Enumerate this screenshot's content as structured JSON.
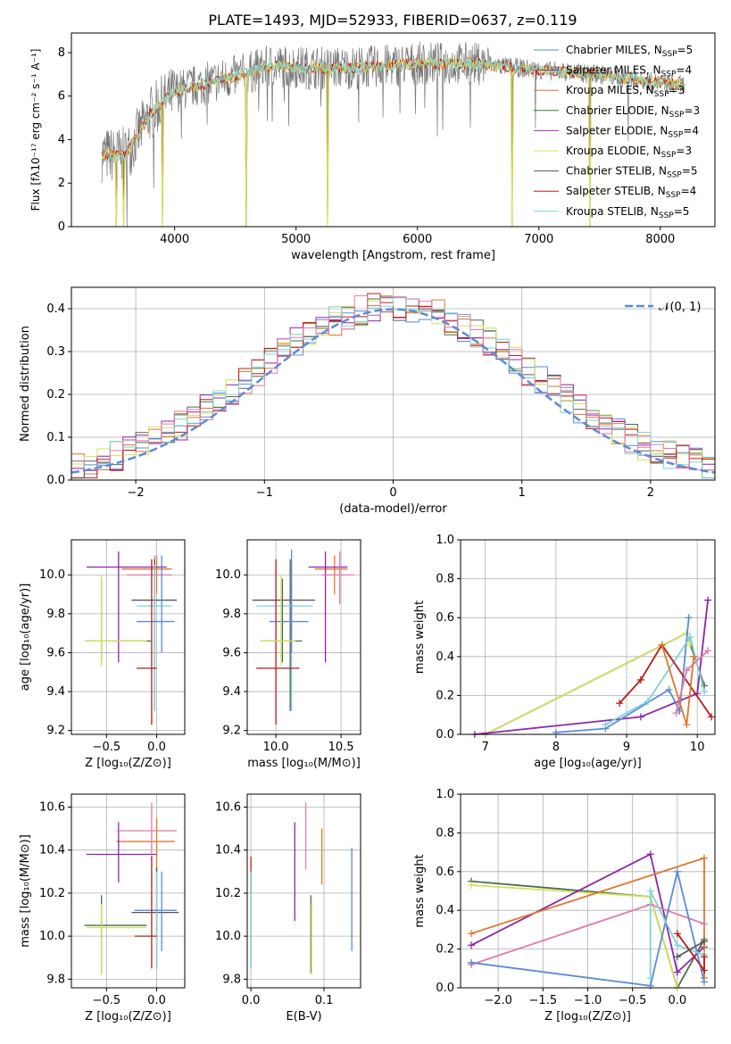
{
  "figure_title": "PLATE=1493, MJD=52933, FIBERID=0637, z=0.119",
  "colors": {
    "chabrier_miles": "#5b8bd6",
    "salpeter_miles": "#8e24aa",
    "kroupa_miles": "#e0762c",
    "chabrier_elodie": "#4a6e4a",
    "salpeter_elodie": "#9c27b0",
    "kroupa_elodie": "#d4e05a",
    "chabrier_stelib": "#555555",
    "salpeter_stelib": "#b71c1c",
    "kroupa_stelib": "#7fd3d6",
    "gaussian": "#5b8bd6",
    "pink": "#e07aab"
  },
  "chart_data": [
    {
      "id": "spectrum",
      "type": "line",
      "title": "PLATE=1493, MJD=52933, FIBERID=0637, z=0.119",
      "xlabel": "wavelength [Angstrom, rest frame]",
      "ylabel": "Flux [fλ10⁻¹⁷ erg cm⁻² s⁻¹ A⁻¹]",
      "xlim": [
        3150,
        8450
      ],
      "ylim": [
        0,
        8.9
      ],
      "xticks": [
        "4000",
        "5000",
        "6000",
        "7000",
        "8000"
      ],
      "yticks": [
        "0",
        "2",
        "4",
        "6",
        "8"
      ],
      "legend_position": "top-right",
      "legend": [
        {
          "label": "Chabrier MILES, N",
          "sub": "SSP",
          "suffix": "=5"
        },
        {
          "label": "Salpeter MILES, N",
          "sub": "SSP",
          "suffix": "=4"
        },
        {
          "label": "Kroupa MILES, N",
          "sub": "SSP",
          "suffix": "=3"
        },
        {
          "label": "Chabrier ELODIE, N",
          "sub": "SSP",
          "suffix": "=3"
        },
        {
          "label": "Salpeter ELODIE, N",
          "sub": "SSP",
          "suffix": "=4"
        },
        {
          "label": "Kroupa ELODIE, N",
          "sub": "SSP",
          "suffix": "=3"
        },
        {
          "label": "Chabrier STELIB, N",
          "sub": "SSP",
          "suffix": "=5"
        },
        {
          "label": "Salpeter STELIB, N",
          "sub": "SSP",
          "suffix": "=4"
        },
        {
          "label": "Kroupa STELIB, N",
          "sub": "SSP",
          "suffix": "=5"
        }
      ],
      "continuum": {
        "x": [
          3400,
          3600,
          3800,
          4000,
          4200,
          4500,
          4800,
          5100,
          5500,
          6000,
          6500,
          7000,
          7500,
          8000,
          8200
        ],
        "y": [
          3.3,
          3.3,
          5.2,
          6.2,
          6.5,
          6.9,
          7.4,
          7.3,
          7.3,
          7.5,
          7.5,
          7.2,
          7.0,
          6.6,
          6.5
        ]
      },
      "dropouts": [
        3520,
        3580,
        3900,
        4590,
        5260,
        6780,
        7420
      ]
    },
    {
      "id": "residuals",
      "type": "line",
      "xlabel": "(data-model)/error",
      "ylabel": "Normed distribution",
      "xlim": [
        -2.5,
        2.5
      ],
      "ylim": [
        0,
        0.45
      ],
      "xticks": [
        "−2",
        "−1",
        "0",
        "1",
        "2"
      ],
      "yticks": [
        "0.0",
        "0.1",
        "0.2",
        "0.3",
        "0.4"
      ],
      "legend_position": "top-right",
      "legend_label": "𝒩(0, 1)",
      "gaussian": {
        "mu": 0,
        "sigma": 1
      }
    },
    {
      "id": "age_vs_z",
      "type": "scatter",
      "xlabel": "Z [log₁₀(Z/Z⊙)]",
      "ylabel": "age  [log₁₀(age/yr)]",
      "xlim": [
        -0.85,
        0.28
      ],
      "ylim": [
        9.18,
        10.18
      ],
      "xticks": [
        "−0.5",
        "0.0"
      ],
      "yticks": [
        "9.2",
        "9.4",
        "9.6",
        "9.8",
        "10.0"
      ],
      "points": [
        {
          "c": "kroupa_miles",
          "x": 0.0,
          "y": 10.03,
          "xe": [
            -0.35,
            0.15
          ],
          "ye": [
            9.9,
            10.1
          ]
        },
        {
          "c": "salpeter_miles",
          "x": -0.38,
          "y": 10.04,
          "xe": [
            -0.7,
            0.1
          ],
          "ye": [
            9.55,
            10.12
          ]
        },
        {
          "c": "pink",
          "x": -0.02,
          "y": 10.0,
          "xe": [
            -0.3,
            0.15
          ],
          "ye": [
            9.85,
            10.1
          ]
        },
        {
          "c": "chabrier_stelib",
          "x": -0.02,
          "y": 9.87,
          "xe": [
            -0.25,
            0.2
          ],
          "ye": [
            9.3,
            10.08
          ]
        },
        {
          "c": "kroupa_stelib",
          "x": -0.02,
          "y": 9.84,
          "xe": [
            -0.2,
            0.15
          ],
          "ye": [
            9.3,
            10.05
          ]
        },
        {
          "c": "chabrier_miles",
          "x": 0.05,
          "y": 9.76,
          "xe": [
            -0.2,
            0.18
          ],
          "ye": [
            9.6,
            10.1
          ]
        },
        {
          "c": "salpeter_stelib",
          "x": -0.05,
          "y": 9.52,
          "xe": [
            -0.2,
            0.0
          ],
          "ye": [
            9.23,
            10.08
          ]
        },
        {
          "c": "chabrier_elodie",
          "x": -0.55,
          "y": 9.66,
          "xe": [
            -0.7,
            -0.05
          ],
          "ye": [
            9.55,
            9.98
          ]
        },
        {
          "c": "kroupa_elodie",
          "x": -0.55,
          "y": 9.66,
          "xe": [
            -0.72,
            -0.1
          ],
          "ye": [
            9.53,
            10.0
          ]
        }
      ]
    },
    {
      "id": "age_vs_mass",
      "type": "scatter",
      "xlabel": "mass [log₁₀(M/M⊙)]",
      "ylabel": "",
      "xlim": [
        9.78,
        10.65
      ],
      "ylim": [
        9.18,
        10.18
      ],
      "xticks": [
        "10.0",
        "10.5"
      ],
      "yticks": [
        "9.2",
        "9.4",
        "9.6",
        "9.8",
        "10.0"
      ],
      "points": [
        {
          "c": "kroupa_miles",
          "x": 10.45,
          "y": 10.03,
          "xe": [
            10.3,
            10.55
          ],
          "ye": [
            9.9,
            10.1
          ]
        },
        {
          "c": "salpeter_miles",
          "x": 10.38,
          "y": 10.04,
          "xe": [
            10.25,
            10.55
          ],
          "ye": [
            9.55,
            10.12
          ]
        },
        {
          "c": "pink",
          "x": 10.49,
          "y": 10.0,
          "xe": [
            10.35,
            10.6
          ],
          "ye": [
            9.85,
            10.12
          ]
        },
        {
          "c": "chabrier_stelib",
          "x": 10.11,
          "y": 9.87,
          "xe": [
            9.82,
            10.3
          ],
          "ye": [
            9.3,
            10.08
          ]
        },
        {
          "c": "kroupa_stelib",
          "x": 10.12,
          "y": 9.84,
          "xe": [
            9.85,
            10.28
          ],
          "ye": [
            9.3,
            10.05
          ]
        },
        {
          "c": "chabrier_miles",
          "x": 10.12,
          "y": 9.76,
          "xe": [
            9.95,
            10.25
          ],
          "ye": [
            9.6,
            10.13
          ]
        },
        {
          "c": "salpeter_stelib",
          "x": 10.0,
          "y": 9.52,
          "xe": [
            9.85,
            10.18
          ],
          "ye": [
            9.23,
            10.08
          ]
        },
        {
          "c": "chabrier_elodie",
          "x": 10.05,
          "y": 9.66,
          "xe": [
            9.88,
            10.2
          ],
          "ye": [
            9.55,
            9.98
          ]
        },
        {
          "c": "kroupa_elodie",
          "x": 10.04,
          "y": 9.66,
          "xe": [
            9.88,
            10.15
          ],
          "ye": [
            9.53,
            10.0
          ]
        }
      ]
    },
    {
      "id": "weight_vs_age",
      "type": "line",
      "xlabel": "age  [log₁₀(age/yr)]",
      "ylabel": "mass weight",
      "xlim": [
        6.65,
        10.25
      ],
      "ylim": [
        0,
        1.0
      ],
      "xticks": [
        "7",
        "8",
        "9",
        "10"
      ],
      "yticks": [
        "0.0",
        "0.2",
        "0.4",
        "0.6",
        "0.8",
        "1.0"
      ],
      "series": [
        {
          "c": "chabrier_elodie",
          "x": [
            7.0,
            9.85,
            10.1
          ],
          "y": [
            0.0,
            0.52,
            0.25
          ]
        },
        {
          "c": "kroupa_elodie",
          "x": [
            7.0,
            9.85,
            9.9
          ],
          "y": [
            0.0,
            0.52,
            0.46
          ]
        },
        {
          "c": "salpeter_miles",
          "x": [
            6.85,
            9.2,
            10.0,
            10.15
          ],
          "y": [
            0.0,
            0.09,
            0.21,
            0.69
          ]
        },
        {
          "c": "chabrier_miles",
          "x": [
            8.0,
            8.7,
            9.6,
            9.75,
            9.88
          ],
          "y": [
            0.01,
            0.03,
            0.23,
            0.12,
            0.6
          ]
        },
        {
          "c": "kroupa_stelib",
          "x": [
            8.7,
            9.3,
            9.9,
            10.1
          ],
          "y": [
            0.05,
            0.17,
            0.5,
            0.22
          ]
        },
        {
          "c": "salpeter_stelib",
          "x": [
            8.9,
            9.2,
            9.5,
            10.2
          ],
          "y": [
            0.16,
            0.28,
            0.46,
            0.09
          ]
        },
        {
          "c": "pink",
          "x": 9.7,
          "y2": [
            9.7,
            9.85,
            10.15
          ],
          "y": [
            0.11,
            0.33,
            0.43
          ]
        },
        {
          "c": "kroupa_miles",
          "x": [
            9.5,
            9.85,
            9.95
          ],
          "y": [
            0.46,
            0.05,
            0.4
          ]
        }
      ]
    },
    {
      "id": "mass_vs_z",
      "type": "scatter",
      "xlabel": "Z [log₁₀(Z/Z⊙)]",
      "ylabel": "mass [log₁₀(M/M⊙)]",
      "xlim": [
        -0.85,
        0.28
      ],
      "ylim": [
        9.76,
        10.66
      ],
      "xticks": [
        "−0.5",
        "0.0"
      ],
      "yticks": [
        "9.8",
        "10.0",
        "10.2",
        "10.4",
        "10.6"
      ],
      "points": [
        {
          "c": "kroupa_miles",
          "x": 0.0,
          "y": 10.44,
          "xe": [
            -0.4,
            0.18
          ],
          "ye": [
            10.3,
            10.55
          ]
        },
        {
          "c": "salpeter_miles",
          "x": -0.38,
          "y": 10.38,
          "xe": [
            -0.7,
            0.0
          ],
          "ye": [
            10.25,
            10.53
          ]
        },
        {
          "c": "pink",
          "x": -0.05,
          "y": 10.49,
          "xe": [
            -0.4,
            0.2
          ],
          "ye": [
            10.35,
            10.62
          ]
        },
        {
          "c": "chabrier_stelib",
          "x": 0.0,
          "y": 10.11,
          "xe": [
            -0.25,
            0.22
          ],
          "ye": [
            9.85,
            10.32
          ]
        },
        {
          "c": "kroupa_stelib",
          "x": 0.0,
          "y": 10.12,
          "xe": [
            -0.22,
            0.2
          ],
          "ye": [
            9.85,
            10.3
          ]
        },
        {
          "c": "chabrier_miles",
          "x": 0.05,
          "y": 10.12,
          "xe": [
            -0.22,
            0.2
          ],
          "ye": [
            9.93,
            10.3
          ]
        },
        {
          "c": "salpeter_stelib",
          "x": -0.05,
          "y": 10.0,
          "xe": [
            -0.22,
            0.0
          ],
          "ye": [
            9.85,
            10.37
          ]
        },
        {
          "c": "chabrier_elodie",
          "x": -0.55,
          "y": 10.05,
          "xe": [
            -0.72,
            -0.1
          ],
          "ye": [
            9.83,
            10.19
          ]
        },
        {
          "c": "kroupa_elodie",
          "x": -0.55,
          "y": 10.04,
          "xe": [
            -0.7,
            -0.1
          ],
          "ye": [
            9.82,
            10.15
          ]
        }
      ]
    },
    {
      "id": "mass_vs_ebv",
      "type": "scatter",
      "xlabel": "E(B-V)",
      "ylabel": "",
      "xlim": [
        -0.005,
        0.15
      ],
      "ylim": [
        9.76,
        10.66
      ],
      "xticks": [
        "0.0",
        "0.1"
      ],
      "yticks": [
        "9.8",
        "10.0",
        "10.2",
        "10.4",
        "10.6"
      ],
      "points": [
        {
          "c": "chabrier_stelib",
          "x": 0.0,
          "ye": [
            9.85,
            10.3
          ]
        },
        {
          "c": "salpeter_stelib",
          "x": 0.0,
          "ye": [
            10.2,
            10.37
          ]
        },
        {
          "c": "kroupa_stelib",
          "x": 0.0,
          "ye": [
            9.85,
            10.3
          ]
        },
        {
          "c": "salpeter_miles",
          "x": 0.06,
          "ye": [
            10.07,
            10.53
          ]
        },
        {
          "c": "pink",
          "x": 0.075,
          "ye": [
            10.31,
            10.62
          ]
        },
        {
          "c": "chabrier_elodie",
          "x": 0.082,
          "ye": [
            9.83,
            10.19
          ]
        },
        {
          "c": "kroupa_elodie",
          "x": 0.083,
          "ye": [
            9.82,
            10.15
          ]
        },
        {
          "c": "kroupa_miles",
          "x": 0.097,
          "ye": [
            10.24,
            10.5
          ]
        },
        {
          "c": "chabrier_miles",
          "x": 0.138,
          "ye": [
            9.93,
            10.41
          ]
        }
      ]
    },
    {
      "id": "weight_vs_z",
      "type": "line",
      "xlabel": "Z [log₁₀(Z/Z⊙)]",
      "ylabel": "mass weight",
      "xlim": [
        -2.42,
        0.42
      ],
      "ylim": [
        0,
        1.0
      ],
      "xticks": [
        "−2.0",
        "−1.5",
        "−1.0",
        "−0.5",
        "0.0"
      ],
      "yticks": [
        "0.0",
        "0.2",
        "0.4",
        "0.6",
        "0.8",
        "1.0"
      ],
      "series": [
        {
          "c": "chabrier_elodie",
          "x": [
            -2.3,
            -0.3,
            0.0,
            0.3
          ],
          "y": [
            0.55,
            0.47,
            0.0,
            0.25
          ]
        },
        {
          "c": "kroupa_elodie",
          "x": [
            -2.3,
            -0.3,
            0.0
          ],
          "y": [
            0.53,
            0.47,
            0.0
          ]
        },
        {
          "c": "salpeter_miles",
          "x": [
            -2.3,
            -0.3,
            0.0,
            0.3
          ],
          "y": [
            0.22,
            0.69,
            0.08,
            0.21
          ]
        },
        {
          "c": "kroupa_miles",
          "x": [
            -2.3,
            0.3,
            0.3
          ],
          "y": [
            0.28,
            0.67,
            0.05
          ]
        },
        {
          "c": "pink",
          "x": [
            -2.3,
            -0.3,
            0.3
          ],
          "y": [
            0.12,
            0.43,
            0.33
          ]
        },
        {
          "c": "chabrier_miles",
          "x": [
            -2.3,
            -0.3,
            0.0,
            0.3
          ],
          "y": [
            0.13,
            0.01,
            0.6,
            0.03
          ]
        },
        {
          "c": "kroupa_stelib",
          "x": [
            -0.3,
            -0.3,
            0.0,
            0.3
          ],
          "y": [
            0.05,
            0.5,
            0.22,
            0.17
          ]
        },
        {
          "c": "salpeter_stelib",
          "x": [
            0.0,
            0.3,
            0.3
          ],
          "y": [
            0.28,
            0.09,
            0.16
          ]
        },
        {
          "c": "chabrier_stelib",
          "x": [
            0.0,
            0.3
          ],
          "y": [
            0.16,
            0.24
          ]
        }
      ]
    }
  ]
}
